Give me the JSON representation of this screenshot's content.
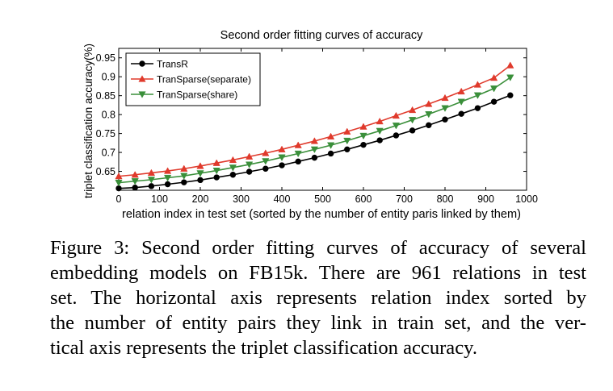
{
  "chart_data": {
    "type": "line",
    "title": "Second order fitting curves of accuracy",
    "xlabel": "relation index in test set (sorted by the number of entity paris linked by them)",
    "ylabel": "triplet classification accuracy(%)",
    "xlim": [
      0,
      1000
    ],
    "ylim": [
      0.6,
      0.975
    ],
    "xticks": [
      "0",
      "100",
      "200",
      "300",
      "400",
      "500",
      "600",
      "700",
      "800",
      "900",
      "1000"
    ],
    "yticks": [
      "0.65",
      "0.7",
      "0.75",
      "0.8",
      "0.85",
      "0.9",
      "0.95"
    ],
    "grid": false,
    "legend_position": "top-left",
    "x": [
      0,
      40,
      80,
      120,
      160,
      200,
      240,
      280,
      320,
      360,
      400,
      440,
      480,
      520,
      560,
      600,
      640,
      680,
      720,
      760,
      800,
      840,
      880,
      920,
      960
    ],
    "series": [
      {
        "name": "TransR",
        "color": "#000000",
        "marker": "circle",
        "values": [
          0.605,
          0.607,
          0.611,
          0.616,
          0.621,
          0.627,
          0.634,
          0.641,
          0.649,
          0.657,
          0.666,
          0.676,
          0.686,
          0.697,
          0.708,
          0.72,
          0.732,
          0.745,
          0.758,
          0.772,
          0.787,
          0.802,
          0.817,
          0.834,
          0.851
        ]
      },
      {
        "name": "TranSparse(separate)",
        "color": "#e03a2c",
        "marker": "triangle-up",
        "values": [
          0.637,
          0.641,
          0.646,
          0.651,
          0.657,
          0.664,
          0.672,
          0.68,
          0.689,
          0.698,
          0.708,
          0.719,
          0.73,
          0.742,
          0.755,
          0.768,
          0.782,
          0.797,
          0.812,
          0.828,
          0.844,
          0.861,
          0.879,
          0.897,
          0.93
        ]
      },
      {
        "name": "TranSparse(share)",
        "color": "#3a8f3a",
        "marker": "triangle-down",
        "values": [
          0.62,
          0.624,
          0.628,
          0.633,
          0.638,
          0.645,
          0.652,
          0.66,
          0.668,
          0.677,
          0.687,
          0.697,
          0.708,
          0.719,
          0.731,
          0.744,
          0.757,
          0.771,
          0.786,
          0.801,
          0.817,
          0.834,
          0.851,
          0.869,
          0.898
        ]
      }
    ]
  },
  "caption": {
    "lines": [
      "Figure 3: Second order fitting curves of accuracy of several",
      "embedding models on FB15k. There are 961 relations in test",
      "set. The horizontal axis represents relation index sorted by",
      "the number of entity pairs they link in train set, and the ver-",
      "tical axis represents the triplet classification accuracy."
    ]
  }
}
